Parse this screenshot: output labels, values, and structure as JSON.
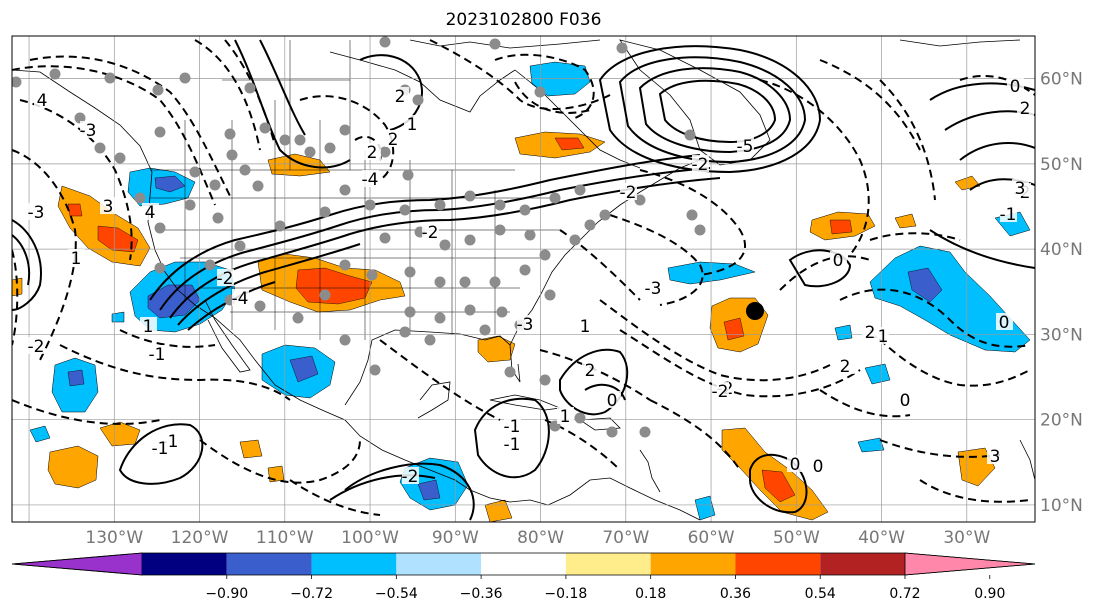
{
  "title": "2023102800 F036",
  "lat_labels": [
    {
      "text": "60°N",
      "lat": 60
    },
    {
      "text": "50°N",
      "lat": 50
    },
    {
      "text": "40°N",
      "lat": 40
    },
    {
      "text": "30°N",
      "lat": 30
    },
    {
      "text": "20°N",
      "lat": 20
    },
    {
      "text": "10°N",
      "lat": 10
    }
  ],
  "lon_labels": [
    {
      "text": "130°W",
      "lon": -130
    },
    {
      "text": "120°W",
      "lon": -120
    },
    {
      "text": "110°W",
      "lon": -110
    },
    {
      "text": "100°W",
      "lon": -100
    },
    {
      "text": "90°W",
      "lon": -90
    },
    {
      "text": "80°W",
      "lon": -80
    },
    {
      "text": "70°W",
      "lon": -70
    },
    {
      "text": "60°W",
      "lon": -60
    },
    {
      "text": "50°W",
      "lon": -50
    },
    {
      "text": "40°W",
      "lon": -40
    },
    {
      "text": "30°W",
      "lon": -30
    }
  ],
  "extent": {
    "lon_min": -142,
    "lon_max": -22,
    "lat_min": 8,
    "lat_max": 65
  },
  "colorbar": {
    "ticks": [
      "−0.90",
      "−0.72",
      "−0.54",
      "−0.36",
      "−0.18",
      "0.18",
      "0.36",
      "0.54",
      "0.72",
      "0.90"
    ],
    "colors": [
      "#9932cc",
      "#000080",
      "#3a5fcd",
      "#00bfff",
      "#b0e2ff",
      "#ffffff",
      "#ffec8b",
      "#ffa500",
      "#ff4500",
      "#b22222",
      "#ff88aa"
    ]
  },
  "contour_labels": [
    "4",
    "4",
    "3",
    "2",
    "1",
    "-4",
    "1",
    "2",
    "2",
    "-2",
    "-5",
    "-2",
    "-4",
    "-3",
    "2",
    "-1",
    "-2",
    "-3",
    "0",
    "-2",
    "-1",
    "2",
    "0",
    "0",
    "-3",
    "1",
    "2",
    "3",
    "0",
    "-1",
    "0",
    "-2",
    "1",
    "-3",
    "-2",
    "0",
    "3",
    "-1",
    "-2",
    "-1",
    "1",
    "0",
    "-2",
    "2",
    "-1",
    "-1",
    "-2"
  ],
  "cities_count": 90,
  "colors": {
    "negative": "#00bfff",
    "negative_core": "#3a5fcd",
    "positive": "#ffa500",
    "positive_core": "#ff4500",
    "marker": "#8c8c8c"
  }
}
